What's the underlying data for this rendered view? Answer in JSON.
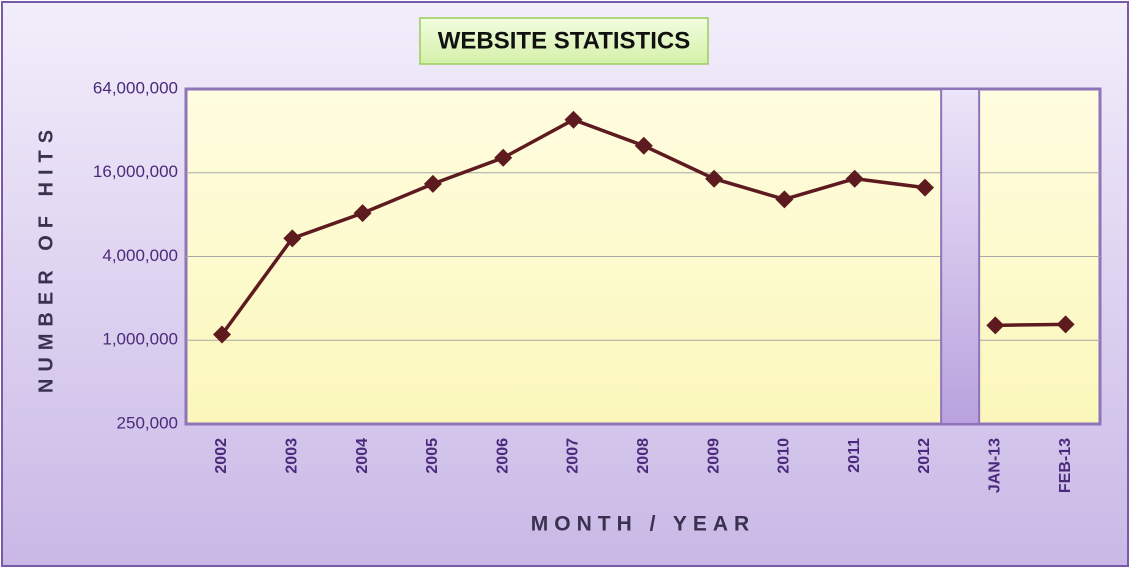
{
  "chart_data": {
    "type": "line",
    "title": "WEBSITE STATISTICS",
    "x_label": "MONTH / YEAR",
    "y_label": "NUMBER OF HITS",
    "categories": [
      "2002",
      "2003",
      "2004",
      "2005",
      "2006",
      "2007",
      "2008",
      "2009",
      "2010",
      "2011",
      "2012",
      null,
      "JAN-13",
      "FEB-13"
    ],
    "values": [
      1100000,
      5400000,
      8200000,
      13300000,
      20500000,
      38500000,
      25000000,
      14500000,
      10300000,
      14500000,
      12500000,
      null,
      1280000,
      1300000
    ],
    "color": "#5e1b1f",
    "y_scale": "log",
    "grid": true,
    "ylim": [
      250000,
      64000000
    ],
    "yticks": [
      {
        "value": 250000,
        "label": "250,000"
      },
      {
        "value": 1000000,
        "label": "1,000,000"
      },
      {
        "value": 4000000,
        "label": "4,000,000"
      },
      {
        "value": 16000000,
        "label": "16,000,000"
      },
      {
        "value": 64000000,
        "label": "64,000,000"
      }
    ]
  }
}
